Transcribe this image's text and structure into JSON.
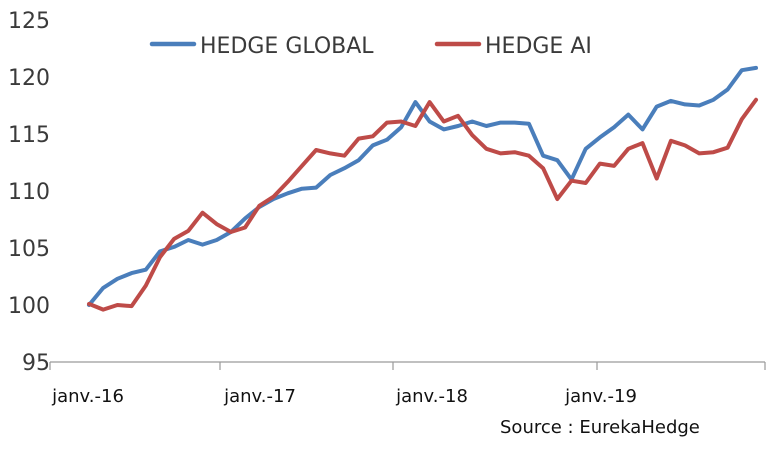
{
  "chart_data": {
    "type": "line",
    "title": "",
    "xlabel": "",
    "ylabel": "",
    "ylim": [
      95,
      125
    ],
    "yticks": [
      95,
      100,
      105,
      110,
      115,
      120,
      125
    ],
    "xtick_labels": [
      "janv.-16",
      "janv.-17",
      "janv.-18",
      "janv.-19"
    ],
    "legend_position": "top-center",
    "grid": false,
    "source": "Source : EurekaHedge",
    "x": [
      "2016-01",
      "2016-02",
      "2016-03",
      "2016-04",
      "2016-05",
      "2016-06",
      "2016-07",
      "2016-08",
      "2016-09",
      "2016-10",
      "2016-11",
      "2016-12",
      "2017-01",
      "2017-02",
      "2017-03",
      "2017-04",
      "2017-05",
      "2017-06",
      "2017-07",
      "2017-08",
      "2017-09",
      "2017-10",
      "2017-11",
      "2017-12",
      "2018-01",
      "2018-02",
      "2018-03",
      "2018-04",
      "2018-05",
      "2018-06",
      "2018-07",
      "2018-08",
      "2018-09",
      "2018-10",
      "2018-11",
      "2018-12",
      "2019-01",
      "2019-02",
      "2019-03",
      "2019-04",
      "2019-05",
      "2019-06",
      "2019-07",
      "2019-08",
      "2019-09",
      "2019-10",
      "2019-11",
      "2019-12"
    ],
    "series": [
      {
        "name": "HEDGE GLOBAL",
        "color": "#4a7ebb",
        "values": [
          100.0,
          101.5,
          102.3,
          102.8,
          103.1,
          104.7,
          105.1,
          105.7,
          105.3,
          105.7,
          106.4,
          107.6,
          108.6,
          109.3,
          109.8,
          110.2,
          110.3,
          111.4,
          112.0,
          112.7,
          114.0,
          114.5,
          115.6,
          117.8,
          116.1,
          115.4,
          115.7,
          116.1,
          115.7,
          116.0,
          116.0,
          115.9,
          113.1,
          112.7,
          111.0,
          113.7,
          114.7,
          115.6,
          116.7,
          115.4,
          117.4,
          117.9,
          117.6,
          117.5,
          118.0,
          118.9,
          120.6,
          120.8
        ]
      },
      {
        "name": "HEDGE AI",
        "color": "#be4b48",
        "values": [
          100.1,
          99.6,
          100.0,
          99.9,
          101.7,
          104.2,
          105.8,
          106.5,
          108.1,
          107.1,
          106.4,
          106.8,
          108.7,
          109.5,
          110.8,
          112.2,
          113.6,
          113.3,
          113.1,
          114.6,
          114.8,
          116.0,
          116.1,
          115.7,
          117.8,
          116.1,
          116.6,
          114.9,
          113.7,
          113.3,
          113.4,
          113.1,
          112.0,
          109.3,
          110.9,
          110.7,
          112.4,
          112.2,
          113.7,
          114.2,
          111.1,
          114.4,
          114.0,
          113.3,
          113.4,
          113.8,
          116.3,
          118.0
        ]
      }
    ]
  }
}
